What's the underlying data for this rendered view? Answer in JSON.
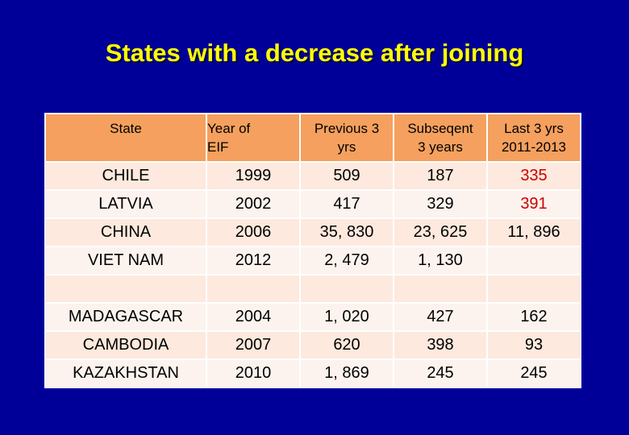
{
  "title": "States with a decrease after joining",
  "colors": {
    "background": "#000099",
    "title": "#ffff00",
    "header": "#f5a05e",
    "highlight": "#cc0000"
  },
  "headers": {
    "state": "State",
    "eif_line1": "Year of",
    "eif_line2": "EIF",
    "prev_line1": "Previous 3",
    "prev_line2": "yrs",
    "sub_line1": "Subseqent",
    "sub_line2": "3 years",
    "last_line1": "Last 3 yrs",
    "last_line2": "2011-2013"
  },
  "rows": [
    {
      "state": "CHILE",
      "eif": "1999",
      "prev": "509",
      "sub": "187",
      "last": "335"
    },
    {
      "state": "LATVIA",
      "eif": "2002",
      "prev": "417",
      "sub": "329",
      "last": "391"
    },
    {
      "state": "CHINA",
      "eif": "2006",
      "prev": "35, 830",
      "sub": "23, 625",
      "last": "11, 896"
    },
    {
      "state": "VIET NAM",
      "eif": "2012",
      "prev": "2, 479",
      "sub": "1, 130",
      "last": ""
    },
    {
      "state": "",
      "eif": "",
      "prev": "",
      "sub": "",
      "last": ""
    },
    {
      "state": "MADAGASCAR",
      "eif": "2004",
      "prev": "1, 020",
      "sub": "427",
      "last": "162"
    },
    {
      "state": "CAMBODIA",
      "eif": "2007",
      "prev": "620",
      "sub": "398",
      "last": "93"
    },
    {
      "state": "KAZAKHSTAN",
      "eif": "2010",
      "prev": "1, 869",
      "sub": "245",
      "last": "245"
    }
  ]
}
